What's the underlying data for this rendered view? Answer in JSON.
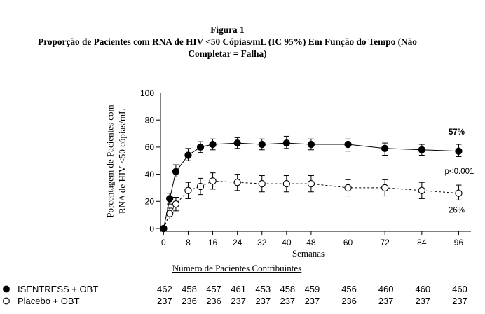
{
  "chart_data": {
    "type": "line",
    "title": "Figura 1",
    "subtitle_lines": [
      "Proporção de Pacientes com RNA de HIV <50 Cópias/mL (IC 95%) Em Função do Tempo (Não",
      "Completar = Falha)"
    ],
    "xlabel": "Semanas",
    "ylabel_lines": [
      "Porcentagem de Pacientes com",
      "RNA de HIV <50 cópias/mL"
    ],
    "xlim": [
      -1,
      100
    ],
    "ylim": [
      0,
      100
    ],
    "xticks": [
      0,
      8,
      16,
      24,
      32,
      40,
      48,
      60,
      72,
      84,
      96
    ],
    "yticks": [
      0,
      20,
      40,
      60,
      80,
      100
    ],
    "grid": false,
    "legend": "bottom-left",
    "x": [
      0,
      2,
      4,
      8,
      12,
      16,
      24,
      32,
      40,
      48,
      60,
      72,
      84,
      96
    ],
    "series": [
      {
        "name": "ISENTRESS + OBT",
        "marker": "filled-circle-icon",
        "line_style": "solid",
        "color": "#000000",
        "values": [
          0,
          22,
          42,
          54,
          60,
          62,
          63,
          62,
          63,
          62,
          62,
          59,
          58,
          57
        ],
        "ci_low": [
          0,
          18,
          38,
          50,
          56,
          58,
          59,
          58,
          59,
          58,
          57,
          54,
          54,
          53
        ],
        "ci_high": [
          0,
          26,
          47,
          59,
          64,
          66,
          67,
          66,
          68,
          66,
          66,
          63,
          62,
          62
        ],
        "counts": [
          462,
          458,
          457,
          461,
          453,
          458,
          459,
          456,
          460,
          460,
          460
        ]
      },
      {
        "name": "Placebo + OBT",
        "marker": "open-circle-icon",
        "line_style": "dashed",
        "color": "#000000",
        "values": [
          0,
          11,
          18,
          28,
          31,
          35,
          34,
          33,
          33,
          33,
          30,
          30,
          28,
          26
        ],
        "ci_low": [
          0,
          7,
          13,
          22,
          25,
          29,
          28,
          27,
          27,
          27,
          24,
          24,
          22,
          21
        ],
        "ci_high": [
          0,
          15,
          23,
          34,
          37,
          41,
          40,
          39,
          39,
          39,
          36,
          36,
          34,
          32
        ],
        "counts": [
          237,
          236,
          236,
          237,
          237,
          237,
          237,
          236,
          237,
          237,
          237
        ]
      }
    ],
    "annotations": [
      "57%",
      "p<0.001",
      "26%"
    ],
    "counts_heading": "Número de Pacientes Contribuintes"
  }
}
